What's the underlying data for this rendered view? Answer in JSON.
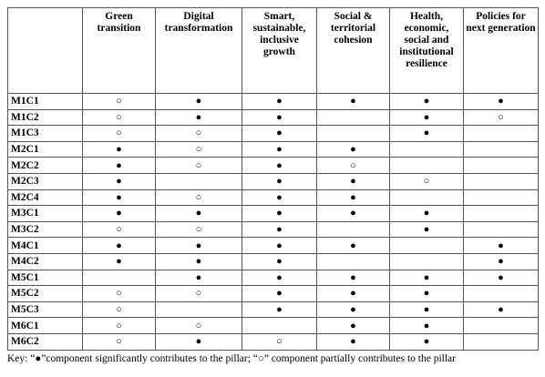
{
  "table": {
    "columns": [
      "Green transition",
      "Digital transformation",
      "Smart, sustainable, inclusive growth",
      "Social & territorial cohesion",
      "Health, economic, social and institutional resilience",
      "Policies for next generation"
    ],
    "rows": [
      {
        "label": "M1C1",
        "cells": [
          "○",
          "●",
          "●",
          "●",
          "●",
          "●"
        ]
      },
      {
        "label": "M1C2",
        "cells": [
          "○",
          "●",
          "●",
          null,
          "●",
          "○"
        ]
      },
      {
        "label": "M1C3",
        "cells": [
          "○",
          "○",
          "●",
          null,
          "●",
          null
        ]
      },
      {
        "label": "M2C1",
        "cells": [
          "●",
          "○",
          "●",
          "●",
          null,
          null
        ]
      },
      {
        "label": "M2C2",
        "cells": [
          "●",
          "○",
          "●",
          "○",
          null,
          null
        ]
      },
      {
        "label": "M2C3",
        "cells": [
          "●",
          null,
          "●",
          "●",
          "○",
          null
        ]
      },
      {
        "label": "M2C4",
        "cells": [
          "●",
          "○",
          "●",
          "●",
          null,
          null
        ]
      },
      {
        "label": "M3C1",
        "cells": [
          "●",
          "●",
          "●",
          "●",
          "●",
          null
        ]
      },
      {
        "label": "M3C2",
        "cells": [
          "○",
          "○",
          "●",
          null,
          "●",
          null
        ]
      },
      {
        "label": "M4C1",
        "cells": [
          "●",
          "●",
          "●",
          "●",
          null,
          "●"
        ]
      },
      {
        "label": "M4C2",
        "cells": [
          "●",
          "●",
          "●",
          null,
          null,
          "●"
        ]
      },
      {
        "label": "M5C1",
        "cells": [
          null,
          "●",
          "●",
          "●",
          "●",
          "●"
        ]
      },
      {
        "label": "M5C2",
        "cells": [
          "○",
          "○",
          "●",
          "●",
          "●",
          null
        ]
      },
      {
        "label": "M5C3",
        "cells": [
          "○",
          null,
          "●",
          "●",
          "●",
          "●"
        ]
      },
      {
        "label": "M6C1",
        "cells": [
          "○",
          "○",
          null,
          "●",
          "●",
          null
        ]
      },
      {
        "label": "M6C2",
        "cells": [
          "○",
          "●",
          "○",
          "●",
          "●",
          null
        ]
      }
    ]
  },
  "key": "Key: “●”component significantly contributes to the pillar; “○” component partially contributes to the pillar"
}
